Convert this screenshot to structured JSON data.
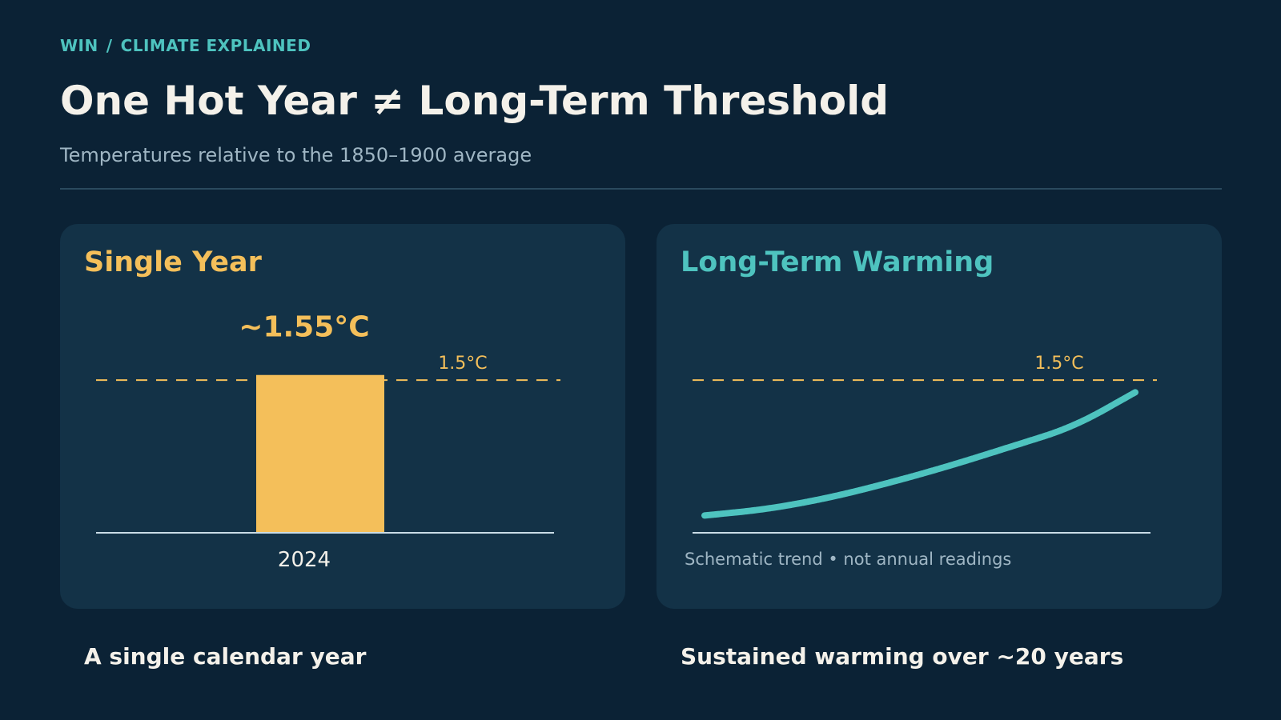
{
  "breadcrumb": {
    "section": "WIN",
    "separator": "/",
    "page": "CLIMATE EXPLAINED"
  },
  "title": "One Hot Year ≠ Long-Term Threshold",
  "subtitle": "Temperatures relative to the 1850–1900 average",
  "colors": {
    "accent_gold": "#f4bf5a",
    "accent_teal": "#4ec3bf",
    "background": "#0b2235",
    "card": "#133247"
  },
  "chart_data": [
    {
      "type": "bar",
      "title": "Single Year",
      "categories": [
        "2024"
      ],
      "values": [
        1.55
      ],
      "value_label": "~1.55°C",
      "threshold": {
        "value": 1.5,
        "label": "1.5°C"
      },
      "ylim": [
        0,
        1.65
      ]
    },
    {
      "type": "line",
      "title": "Long-Term Warming",
      "schematic": true,
      "series": [
        {
          "values": [
            0.17,
            0.23,
            0.34,
            0.49,
            0.66,
            0.85,
            1.04,
            1.38
          ]
        }
      ],
      "threshold": {
        "value": 1.5,
        "label": "1.5°C"
      },
      "ylim": [
        0,
        1.65
      ],
      "note": "Schematic trend • not annual readings"
    }
  ],
  "captions": {
    "left": "A single calendar year",
    "right": "Sustained warming over ~20 years"
  }
}
